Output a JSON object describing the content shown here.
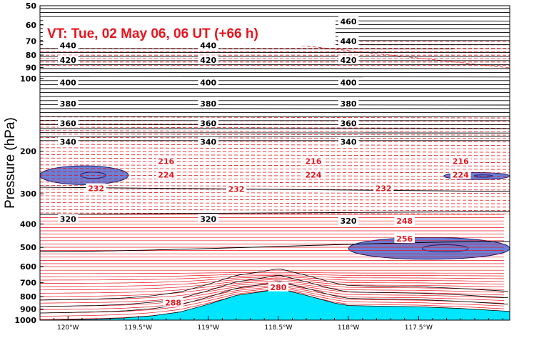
{
  "chart_data": {
    "type": "cross-section",
    "title": "VT:  Tue, 02 May 06, 06 UT (+66 h)",
    "ylabel": "Pressure (hPa)",
    "y_scale": "log",
    "ylim": [
      1000,
      50
    ],
    "xlim": [
      -120.2,
      -116.85
    ],
    "y_ticks": [
      "50",
      "60",
      "70",
      "80",
      "90",
      "100",
      "200",
      "300",
      "400",
      "500",
      "600",
      "700",
      "800",
      "900",
      "1000"
    ],
    "x_ticks": [
      {
        "value": -120.0,
        "label": "120°W"
      },
      {
        "value": -119.5,
        "label": "119.5°W"
      },
      {
        "value": -119.0,
        "label": "119°W"
      },
      {
        "value": -118.5,
        "label": "118.5°W"
      },
      {
        "value": -118.0,
        "label": "118°W"
      },
      {
        "value": -117.5,
        "label": "117.5°W"
      }
    ],
    "theta_contours": {
      "color": "#000000",
      "interval": 5,
      "labels": [
        {
          "text": "460",
          "x": -118.0,
          "p": 58
        },
        {
          "text": "440",
          "x": -120.0,
          "p": 73
        },
        {
          "text": "440",
          "x": -119.0,
          "p": 73
        },
        {
          "text": "440",
          "x": -118.0,
          "p": 70
        },
        {
          "text": "420",
          "x": -120.0,
          "p": 84
        },
        {
          "text": "420",
          "x": -119.0,
          "p": 84
        },
        {
          "text": "420",
          "x": -118.0,
          "p": 84
        },
        {
          "text": "400",
          "x": -120.0,
          "p": 104
        },
        {
          "text": "400",
          "x": -119.0,
          "p": 104
        },
        {
          "text": "400",
          "x": -118.0,
          "p": 104
        },
        {
          "text": "380",
          "x": -120.0,
          "p": 127
        },
        {
          "text": "380",
          "x": -119.0,
          "p": 127
        },
        {
          "text": "380",
          "x": -118.0,
          "p": 127
        },
        {
          "text": "360",
          "x": -120.0,
          "p": 153
        },
        {
          "text": "360",
          "x": -119.0,
          "p": 153
        },
        {
          "text": "360",
          "x": -118.0,
          "p": 153
        },
        {
          "text": "340",
          "x": -120.0,
          "p": 183
        },
        {
          "text": "340",
          "x": -119.0,
          "p": 183
        },
        {
          "text": "340",
          "x": -118.0,
          "p": 183
        },
        {
          "text": "320",
          "x": -120.0,
          "p": 382
        },
        {
          "text": "320",
          "x": -119.0,
          "p": 382
        },
        {
          "text": "320",
          "x": -118.0,
          "p": 388
        }
      ]
    },
    "temperature_contours": {
      "color": "#e8141e",
      "unit": "K",
      "labels": [
        {
          "text": "216",
          "x": -119.3,
          "p": 220
        },
        {
          "text": "216",
          "x": -118.25,
          "p": 220
        },
        {
          "text": "216",
          "x": -117.2,
          "p": 220
        },
        {
          "text": "224",
          "x": -119.3,
          "p": 250
        },
        {
          "text": "224",
          "x": -118.25,
          "p": 250
        },
        {
          "text": "224",
          "x": -117.2,
          "p": 250
        },
        {
          "text": "232",
          "x": -119.8,
          "p": 285
        },
        {
          "text": "232",
          "x": -118.8,
          "p": 287
        },
        {
          "text": "232",
          "x": -117.75,
          "p": 285
        },
        {
          "text": "248",
          "x": -117.6,
          "p": 388
        },
        {
          "text": "256",
          "x": -117.6,
          "p": 460
        },
        {
          "text": "280",
          "x": -118.5,
          "p": 730
        },
        {
          "text": "288",
          "x": -119.25,
          "p": 845
        }
      ]
    },
    "shaded_regions": [
      {
        "color": "#6a7fd6",
        "x_range": [
          -120.2,
          -119.57
        ],
        "p_range": [
          230,
          275
        ]
      },
      {
        "color": "#6a7fd6",
        "x_range": [
          -117.32,
          -116.85
        ],
        "p_range": [
          245,
          262
        ]
      },
      {
        "color": "#6a7fd6",
        "x_range": [
          -118.0,
          -116.85
        ],
        "p_range": [
          455,
          560
        ]
      }
    ],
    "terrain": {
      "color": "#00e5ff",
      "x": [
        -120.2,
        -120.0,
        -119.8,
        -119.6,
        -119.4,
        -119.2,
        -119.0,
        -118.8,
        -118.6,
        -118.5,
        -118.3,
        -118.1,
        -118.0,
        -117.8,
        -117.5,
        -117.2,
        -116.85
      ],
      "p": [
        1000,
        995,
        990,
        980,
        960,
        925,
        860,
        790,
        760,
        740,
        790,
        850,
        870,
        875,
        880,
        895,
        920
      ]
    }
  }
}
